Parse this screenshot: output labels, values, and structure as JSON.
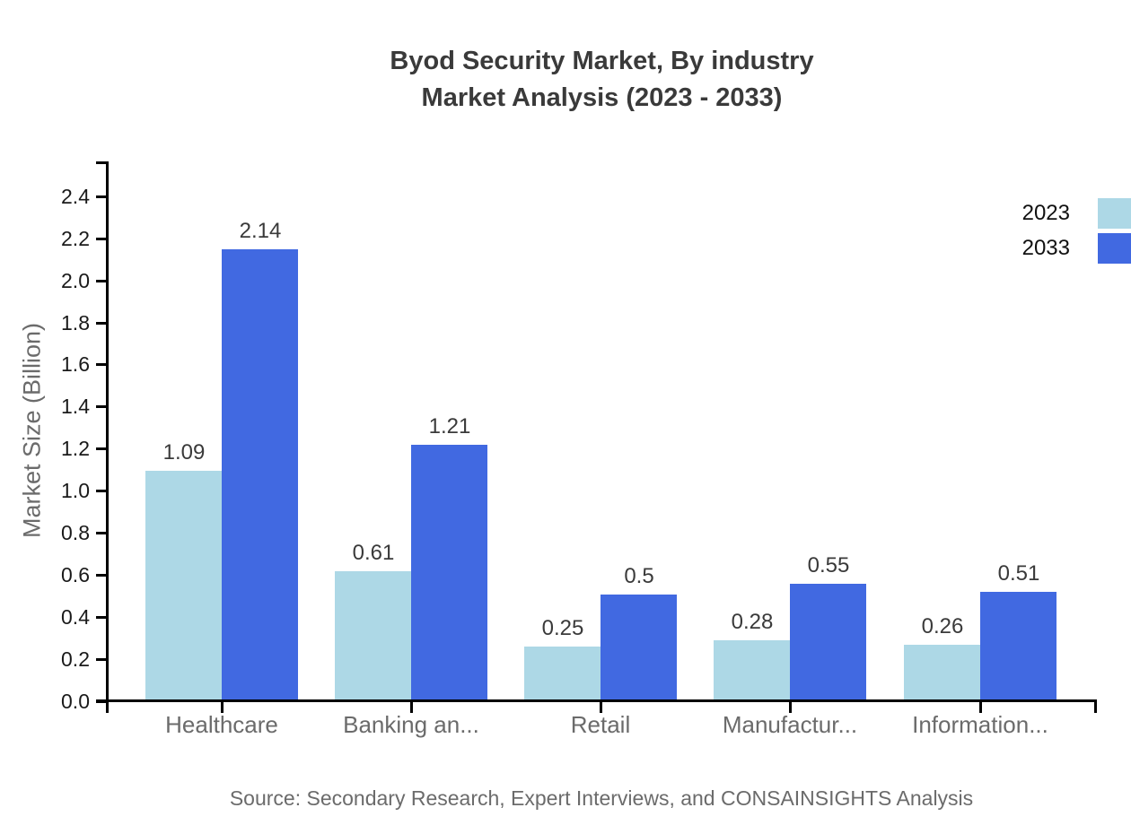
{
  "title": {
    "line1": "Byod Security Market, By industry",
    "line2": "Market Analysis (2023 - 2033)"
  },
  "y_axis": {
    "label": "Market Size (Billion)",
    "tick_labels": [
      "0.0",
      "0.2",
      "0.4",
      "0.6",
      "0.8",
      "1.0",
      "1.2",
      "1.4",
      "1.6",
      "1.8",
      "2.0",
      "2.2",
      "2.4"
    ]
  },
  "legend": {
    "items": [
      {
        "label": "2023",
        "color": "#ADD8E6"
      },
      {
        "label": "2033",
        "color": "#4169E1"
      }
    ]
  },
  "source": "Source: Secondary Research, Expert Interviews, and CONSAINSIGHTS Analysis",
  "colors": {
    "series_2023": "#ADD8E6",
    "series_2033": "#4169E1",
    "axis": "#000000",
    "title_text": "#3a3a3a",
    "value_label_text": "#3a3a3a",
    "muted_text": "#6b6b6b",
    "background": "#ffffff"
  },
  "chart_data": {
    "type": "bar",
    "title": "Byod Security Market, By industry Market Analysis (2023 - 2033)",
    "categories": [
      "Healthcare",
      "Banking an...",
      "Retail",
      "Manufactur...",
      "Information..."
    ],
    "series": [
      {
        "name": "2023",
        "color": "#ADD8E6",
        "values": [
          1.09,
          0.61,
          0.25,
          0.28,
          0.26
        ],
        "labels": [
          "1.09",
          "0.61",
          "0.25",
          "0.28",
          "0.26"
        ]
      },
      {
        "name": "2033",
        "color": "#4169E1",
        "values": [
          2.14,
          1.21,
          0.5,
          0.55,
          0.51
        ],
        "labels": [
          "2.14",
          "1.21",
          "0.5",
          "0.55",
          "0.51"
        ]
      }
    ],
    "xlabel": "",
    "ylabel": "Market Size (Billion)",
    "ylim": [
      0,
      2.57
    ],
    "yticks": [
      0.0,
      0.2,
      0.4,
      0.6,
      0.8,
      1.0,
      1.2,
      1.4,
      1.6,
      1.8,
      2.0,
      2.2,
      2.4
    ],
    "grid": false,
    "bar_value_labels": true,
    "legend_position": "top-right"
  }
}
